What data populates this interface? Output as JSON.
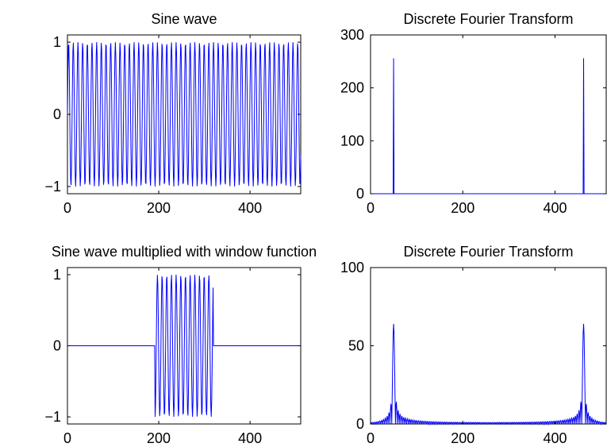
{
  "chart_data": [
    {
      "type": "line",
      "title": "Sine wave",
      "xlabel": "",
      "ylabel": "",
      "xlim": [
        0,
        511
      ],
      "ylim": [
        -1.1,
        1.1
      ],
      "xticks": [
        0,
        200,
        400
      ],
      "yticks": [
        -1,
        0,
        1
      ],
      "ytick_labels": [
        "−1",
        "0",
        "1"
      ],
      "signal": {
        "kind": "sine",
        "frequency_bin": 50,
        "n": 512,
        "amplitude": 1
      },
      "series": [
        {
          "color": "#0000ff"
        }
      ]
    },
    {
      "type": "line",
      "title": "Discrete Fourier Transform",
      "xlabel": "",
      "ylabel": "",
      "xlim": [
        0,
        511
      ],
      "ylim": [
        0,
        300
      ],
      "xticks": [
        0,
        200,
        400
      ],
      "yticks": [
        0,
        100,
        200,
        300
      ],
      "ytick_labels": [
        "0",
        "100",
        "200",
        "300"
      ],
      "peaks": [
        {
          "x": 50,
          "y": 256
        },
        {
          "x": 462,
          "y": 256
        }
      ],
      "series": [
        {
          "color": "#0000ff"
        }
      ]
    },
    {
      "type": "line",
      "title": "Sine wave multiplied with window function",
      "xlabel": "",
      "ylabel": "",
      "xlim": [
        0,
        511
      ],
      "ylim": [
        -1.1,
        1.1
      ],
      "xticks": [
        0,
        200,
        400
      ],
      "yticks": [
        -1,
        0,
        1
      ],
      "ytick_labels": [
        "−1",
        "0",
        "1"
      ],
      "signal": {
        "kind": "windowed_sine",
        "frequency_bin": 50,
        "n": 512,
        "amplitude": 1,
        "window_start": 192,
        "window_end": 320
      },
      "series": [
        {
          "color": "#0000ff"
        }
      ]
    },
    {
      "type": "line",
      "title": "Discrete Fourier Transform",
      "xlabel": "",
      "ylabel": "",
      "xlim": [
        0,
        511
      ],
      "ylim": [
        0,
        100
      ],
      "xticks": [
        0,
        200,
        400
      ],
      "yticks": [
        0,
        50,
        100
      ],
      "ytick_labels": [
        "0",
        "50",
        "100"
      ],
      "peaks": [
        {
          "x": 50,
          "y": 64
        },
        {
          "x": 462,
          "y": 64
        }
      ],
      "series": [
        {
          "color": "#0000ff"
        }
      ]
    }
  ]
}
